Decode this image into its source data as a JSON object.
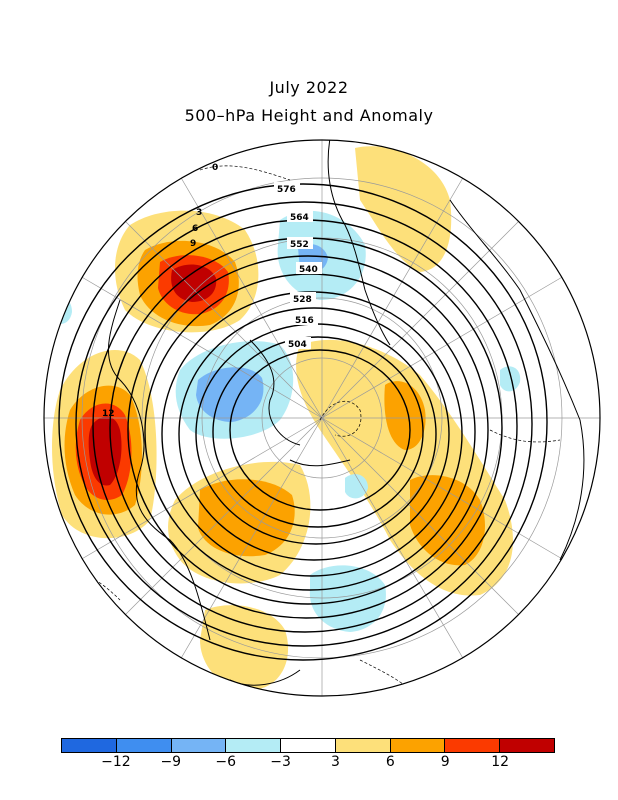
{
  "title": "July 2022",
  "subtitle": "500–hPa Height and Anomaly",
  "height_contour_labels": [
    "576",
    "564",
    "552",
    "540",
    "528",
    "516",
    "504"
  ],
  "anomaly_contour_labels": [
    "3",
    "6",
    "9",
    "12",
    "0"
  ],
  "colorbar": {
    "colors": [
      "#1f68e0",
      "#3f8ef0",
      "#75b4f5",
      "#b4ecf5",
      "#ffffff",
      "#fde07a",
      "#fca200",
      "#fb3a00",
      "#c00000"
    ],
    "tick_labels": [
      "−12",
      "−9",
      "−6",
      "−3",
      "3",
      "6",
      "9",
      "12"
    ]
  },
  "anomaly_colors": {
    "pos3": "#fde07a",
    "pos6": "#fca200",
    "pos9": "#fb3a00",
    "pos12": "#c00000",
    "neg3": "#b4ecf5",
    "neg6": "#75b4f5"
  }
}
